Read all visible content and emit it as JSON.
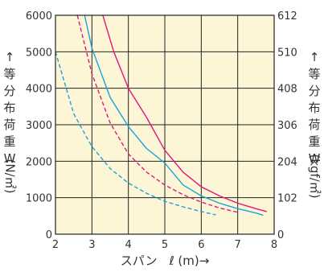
{
  "chart_data": {
    "type": "line",
    "title": "",
    "xlabel": "スパン　ℓ (m)→",
    "ylabel_left": [
      "↑",
      "等",
      "分",
      "布",
      "荷",
      "重",
      "W",
      "(N/㎡)"
    ],
    "ylabel_right": [
      "↑",
      "等",
      "分",
      "布",
      "荷",
      "重",
      "W",
      "(kgf/㎡)"
    ],
    "xlim": [
      2,
      8
    ],
    "ylim": [
      0,
      6000
    ],
    "ylim_right": [
      0,
      612
    ],
    "x_ticks": [
      "2",
      "3",
      "4",
      "5",
      "6",
      "7",
      "8"
    ],
    "y_ticks_left": [
      "0",
      "1000",
      "2000",
      "3000",
      "4000",
      "5000",
      "6000"
    ],
    "y_ticks_right": [
      "0",
      "102",
      "204",
      "306",
      "408",
      "510",
      "612"
    ],
    "grid": true,
    "series": [
      {
        "color": "#e3157a",
        "dash": "solid",
        "points": [
          [
            3.3,
            6000
          ],
          [
            3.6,
            5000
          ],
          [
            4.0,
            4000
          ],
          [
            4.5,
            3200
          ],
          [
            5.0,
            2300
          ],
          [
            5.5,
            1700
          ],
          [
            6.0,
            1300
          ],
          [
            6.5,
            1050
          ],
          [
            7.0,
            850
          ],
          [
            7.5,
            700
          ],
          [
            7.8,
            620
          ]
        ]
      },
      {
        "color": "#1aa3d9",
        "dash": "solid",
        "points": [
          [
            2.8,
            6000
          ],
          [
            3.0,
            5100
          ],
          [
            3.5,
            3750
          ],
          [
            4.0,
            2950
          ],
          [
            4.5,
            2350
          ],
          [
            5.0,
            1950
          ],
          [
            5.5,
            1350
          ],
          [
            6.0,
            1050
          ],
          [
            6.5,
            850
          ],
          [
            7.0,
            700
          ],
          [
            7.5,
            580
          ],
          [
            7.7,
            520
          ]
        ]
      },
      {
        "color": "#e3157a",
        "dash": "dashed",
        "points": [
          [
            2.6,
            6000
          ],
          [
            3.0,
            4400
          ],
          [
            3.5,
            3050
          ],
          [
            4.0,
            2200
          ],
          [
            4.5,
            1700
          ],
          [
            5.0,
            1350
          ],
          [
            5.5,
            1080
          ],
          [
            6.0,
            880
          ],
          [
            6.5,
            720
          ],
          [
            7.0,
            600
          ]
        ]
      },
      {
        "color": "#1aa3d9",
        "dash": "dashed",
        "points": [
          [
            2.0,
            5000
          ],
          [
            2.5,
            3300
          ],
          [
            3.0,
            2400
          ],
          [
            3.5,
            1800
          ],
          [
            4.0,
            1400
          ],
          [
            4.5,
            1120
          ],
          [
            5.0,
            900
          ],
          [
            5.5,
            750
          ],
          [
            6.0,
            620
          ],
          [
            6.4,
            530
          ]
        ]
      }
    ]
  }
}
